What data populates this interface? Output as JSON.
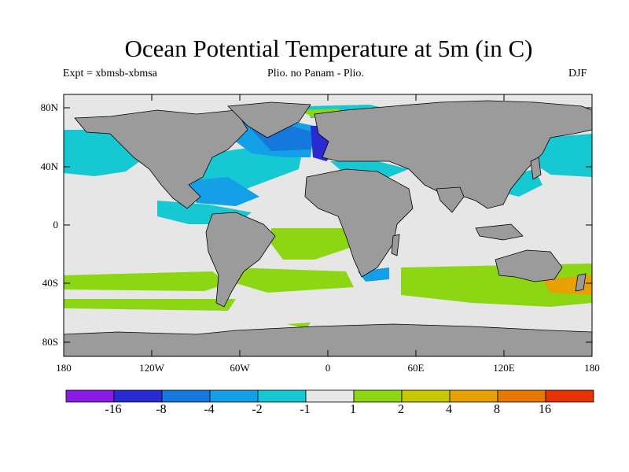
{
  "header": {
    "title": "Ocean Potential Temperature at 5m (in C)",
    "experiment": "Expt = xbmsb-xbmsa",
    "comparison": "Plio. no Panam - Plio.",
    "season": "DJF"
  },
  "map": {
    "y_ticks": [
      "80N",
      "40N",
      "0",
      "40S",
      "80S"
    ],
    "x_ticks": [
      "180",
      "120W",
      "60W",
      "0",
      "60E",
      "120E",
      "180"
    ],
    "land_color": "#9b9b9b",
    "neutral_color": "#e6e6e6"
  },
  "colorbar": {
    "colors": [
      "#8a1be0",
      "#2a2ad2",
      "#1478dc",
      "#14a0e6",
      "#16c8d2",
      "#e6e6e6",
      "#8cd614",
      "#c8c800",
      "#e6a000",
      "#e67800",
      "#e63200"
    ],
    "labels": [
      "-16",
      "-8",
      "-4",
      "-2",
      "-1",
      "1",
      "2",
      "4",
      "8",
      "16"
    ]
  }
}
